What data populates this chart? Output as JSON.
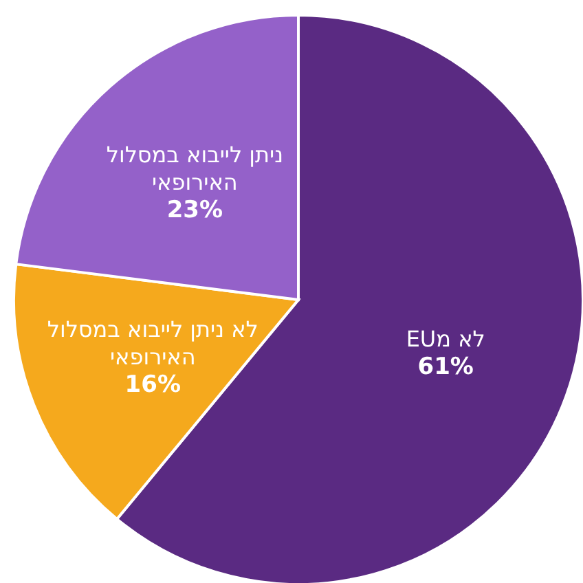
{
  "chart_data": {
    "type": "pie",
    "categories": [
      "לא מEU",
      "לא ניתן לייבוא במסלול האירופאי",
      "ניתן לייבוא במסלול האירופאי"
    ],
    "values": [
      61,
      16,
      23
    ],
    "value_labels": [
      "61%",
      "16%",
      "23%"
    ],
    "colors": [
      "#5a2a82",
      "#f5a91d",
      "#9461c9"
    ]
  }
}
